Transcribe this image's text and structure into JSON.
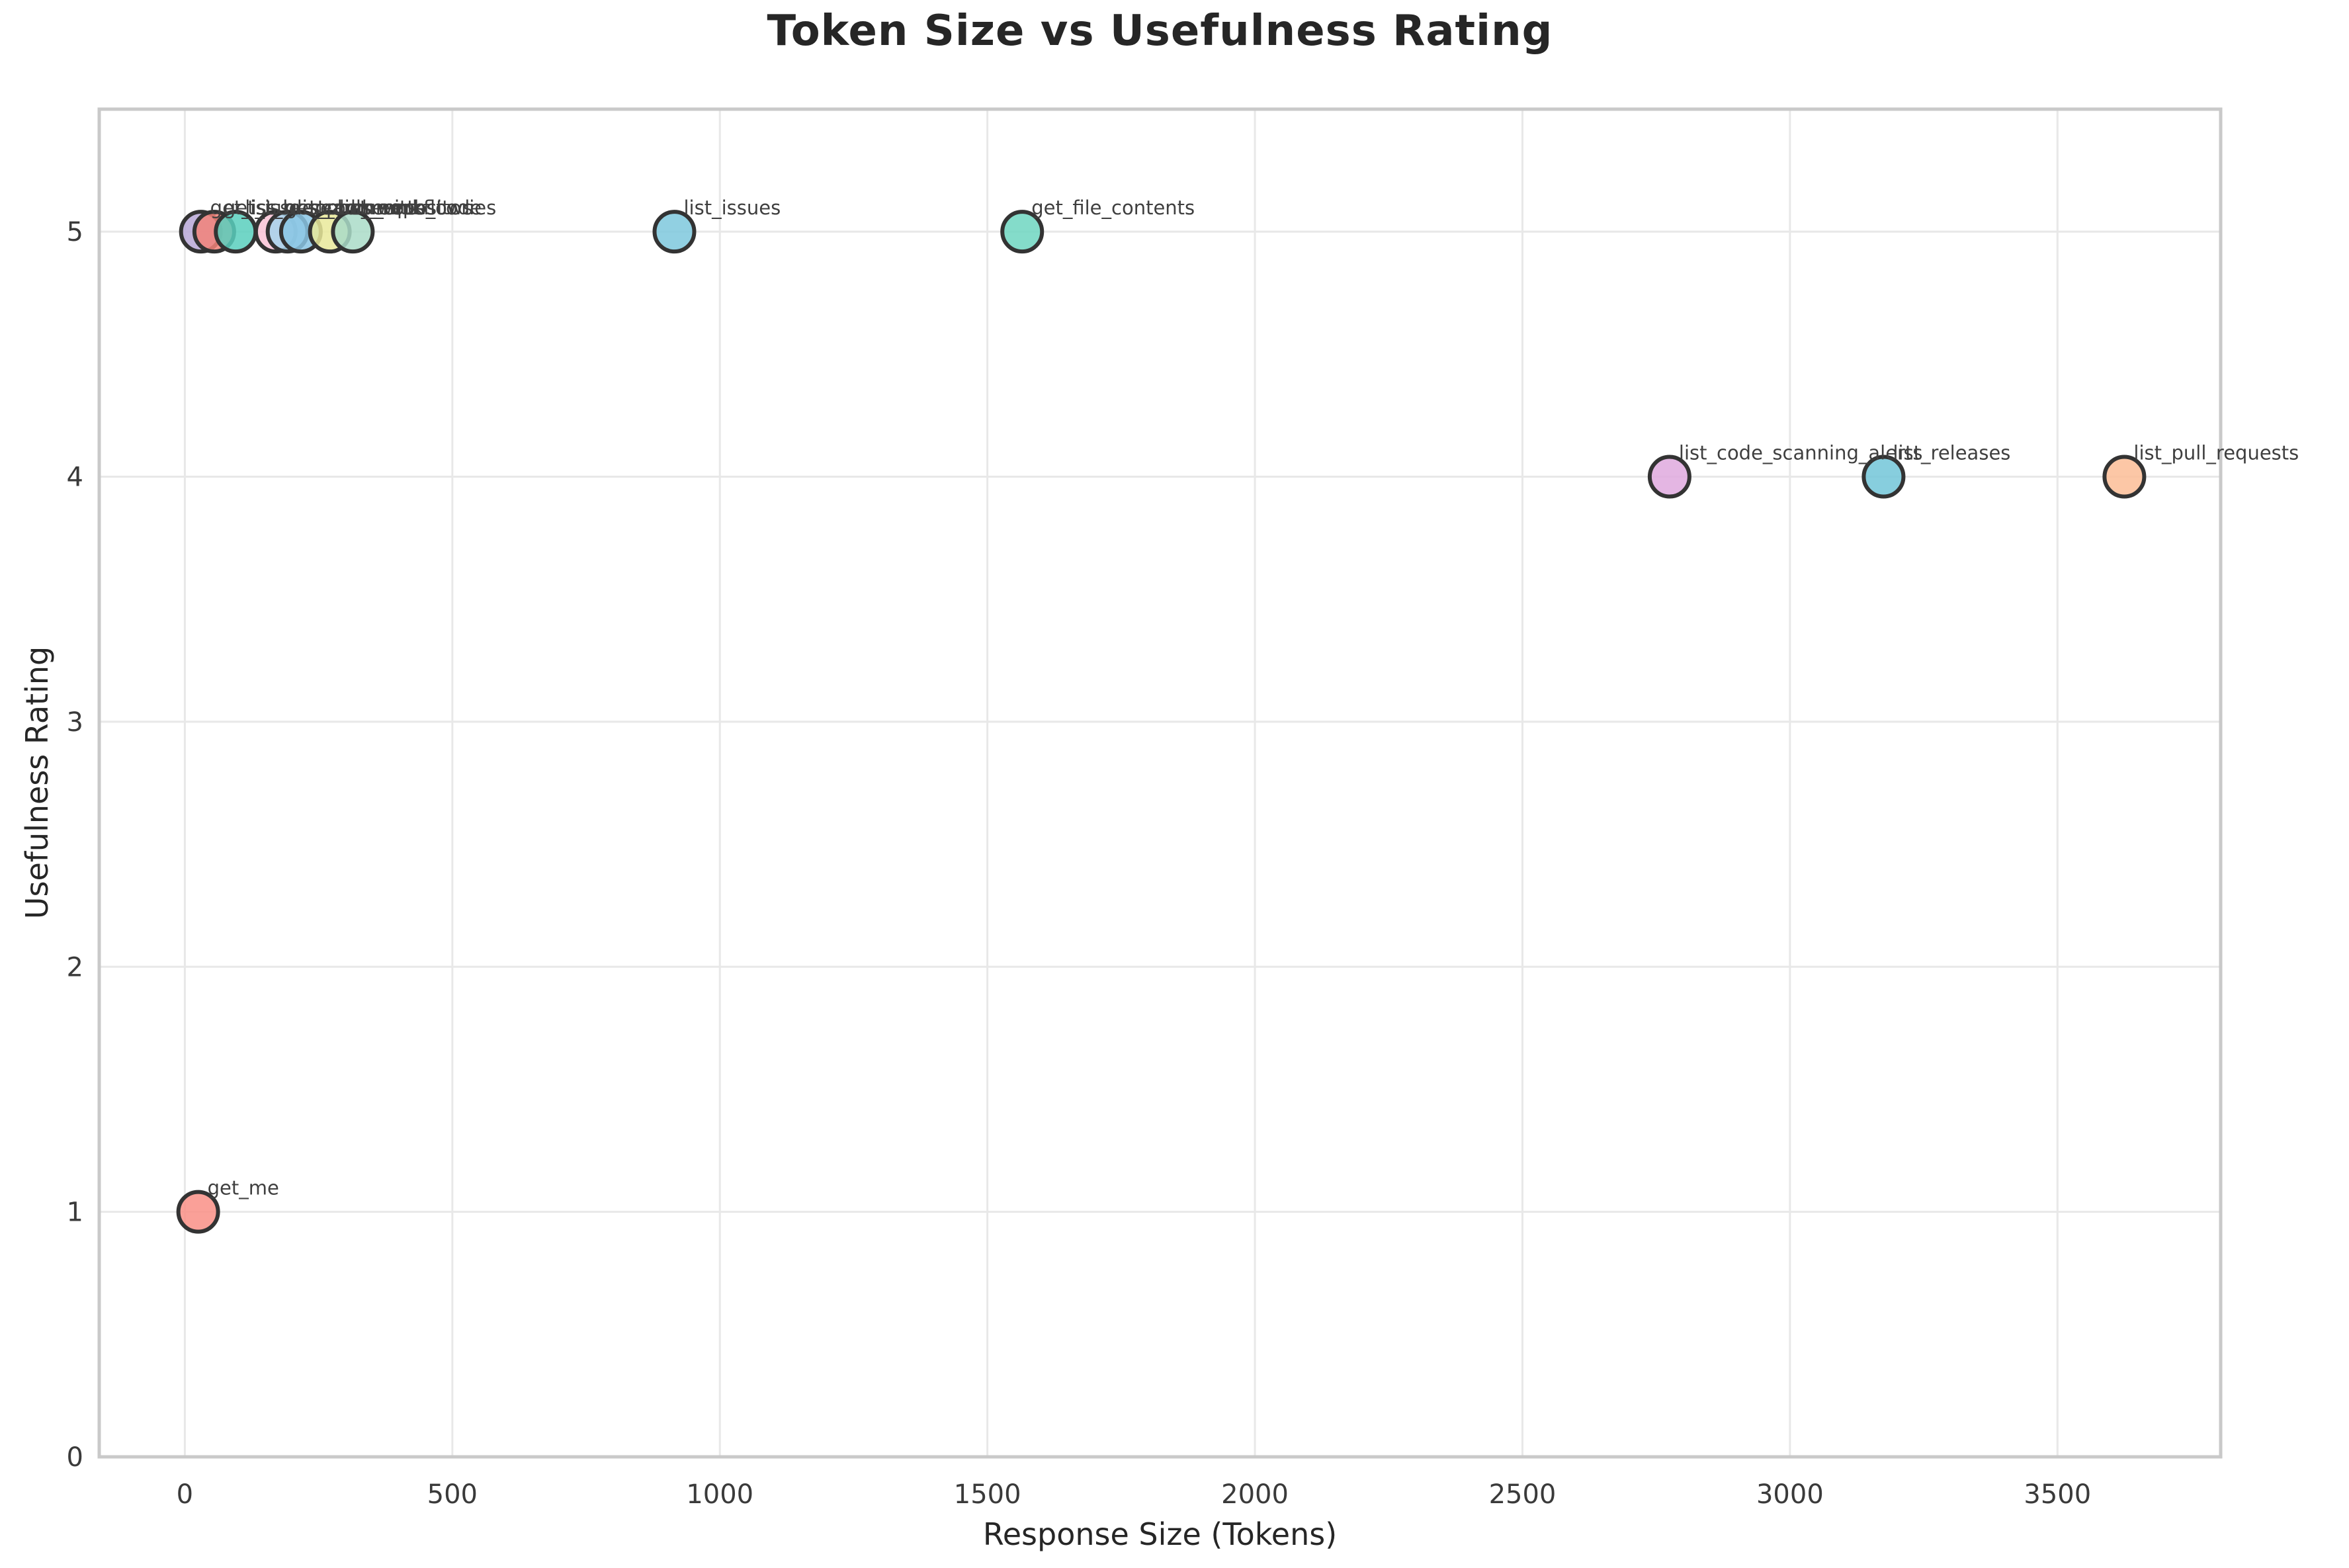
{
  "chart_data": {
    "type": "scatter",
    "title": "Token Size vs Usefulness Rating",
    "xlabel": "Response Size (Tokens)",
    "ylabel": "Usefulness Rating",
    "xlim": [
      -160,
      3805
    ],
    "ylim": [
      0,
      5.5
    ],
    "xticks": [
      0,
      500,
      1000,
      1500,
      2000,
      2500,
      3000,
      3500
    ],
    "yticks": [
      0,
      1,
      2,
      3,
      4,
      5
    ],
    "grid": true,
    "legend": false,
    "background": "#ffffff",
    "grid_color": "#e8e8e8",
    "spine_color": "#c9c9c9",
    "marker_edge_color": "#333333",
    "points": [
      {
        "tool": "get_issue",
        "tokens": 30,
        "rating": 5,
        "color": "#b7a7d6"
      },
      {
        "tool": "get_issue_comments",
        "tokens": 55,
        "rating": 5,
        "color": "#f28379"
      },
      {
        "tool": "list_branches",
        "tokens": 95,
        "rating": 5,
        "color": "#59cfbd"
      },
      {
        "tool": "get_pull_request",
        "tokens": 170,
        "rating": 5,
        "color": "#f9c3d6"
      },
      {
        "tool": "list_commits",
        "tokens": 192,
        "rating": 5,
        "color": "#a6d4ec"
      },
      {
        "tool": "search_repositories",
        "tokens": 217,
        "rating": 5,
        "color": "#8ac6e4"
      },
      {
        "tool": "list_workflows",
        "tokens": 271,
        "rating": 5,
        "color": "#e9e99a"
      },
      {
        "tool": "search_code",
        "tokens": 314,
        "rating": 5,
        "color": "#aadcc8"
      },
      {
        "tool": "list_issues",
        "tokens": 915,
        "rating": 5,
        "color": "#7ec8dd"
      },
      {
        "tool": "get_file_contents",
        "tokens": 1565,
        "rating": 5,
        "color": "#6fd6c1"
      },
      {
        "tool": "list_code_scanning_alerts",
        "tokens": 2775,
        "rating": 4,
        "color": "#dfa9de"
      },
      {
        "tool": "list_releases",
        "tokens": 3175,
        "rating": 4,
        "color": "#72c5d8"
      },
      {
        "tool": "list_pull_requests",
        "tokens": 3625,
        "rating": 4,
        "color": "#fcbd97"
      },
      {
        "tool": "get_me",
        "tokens": 25,
        "rating": 1,
        "color": "#f98f86"
      }
    ]
  }
}
